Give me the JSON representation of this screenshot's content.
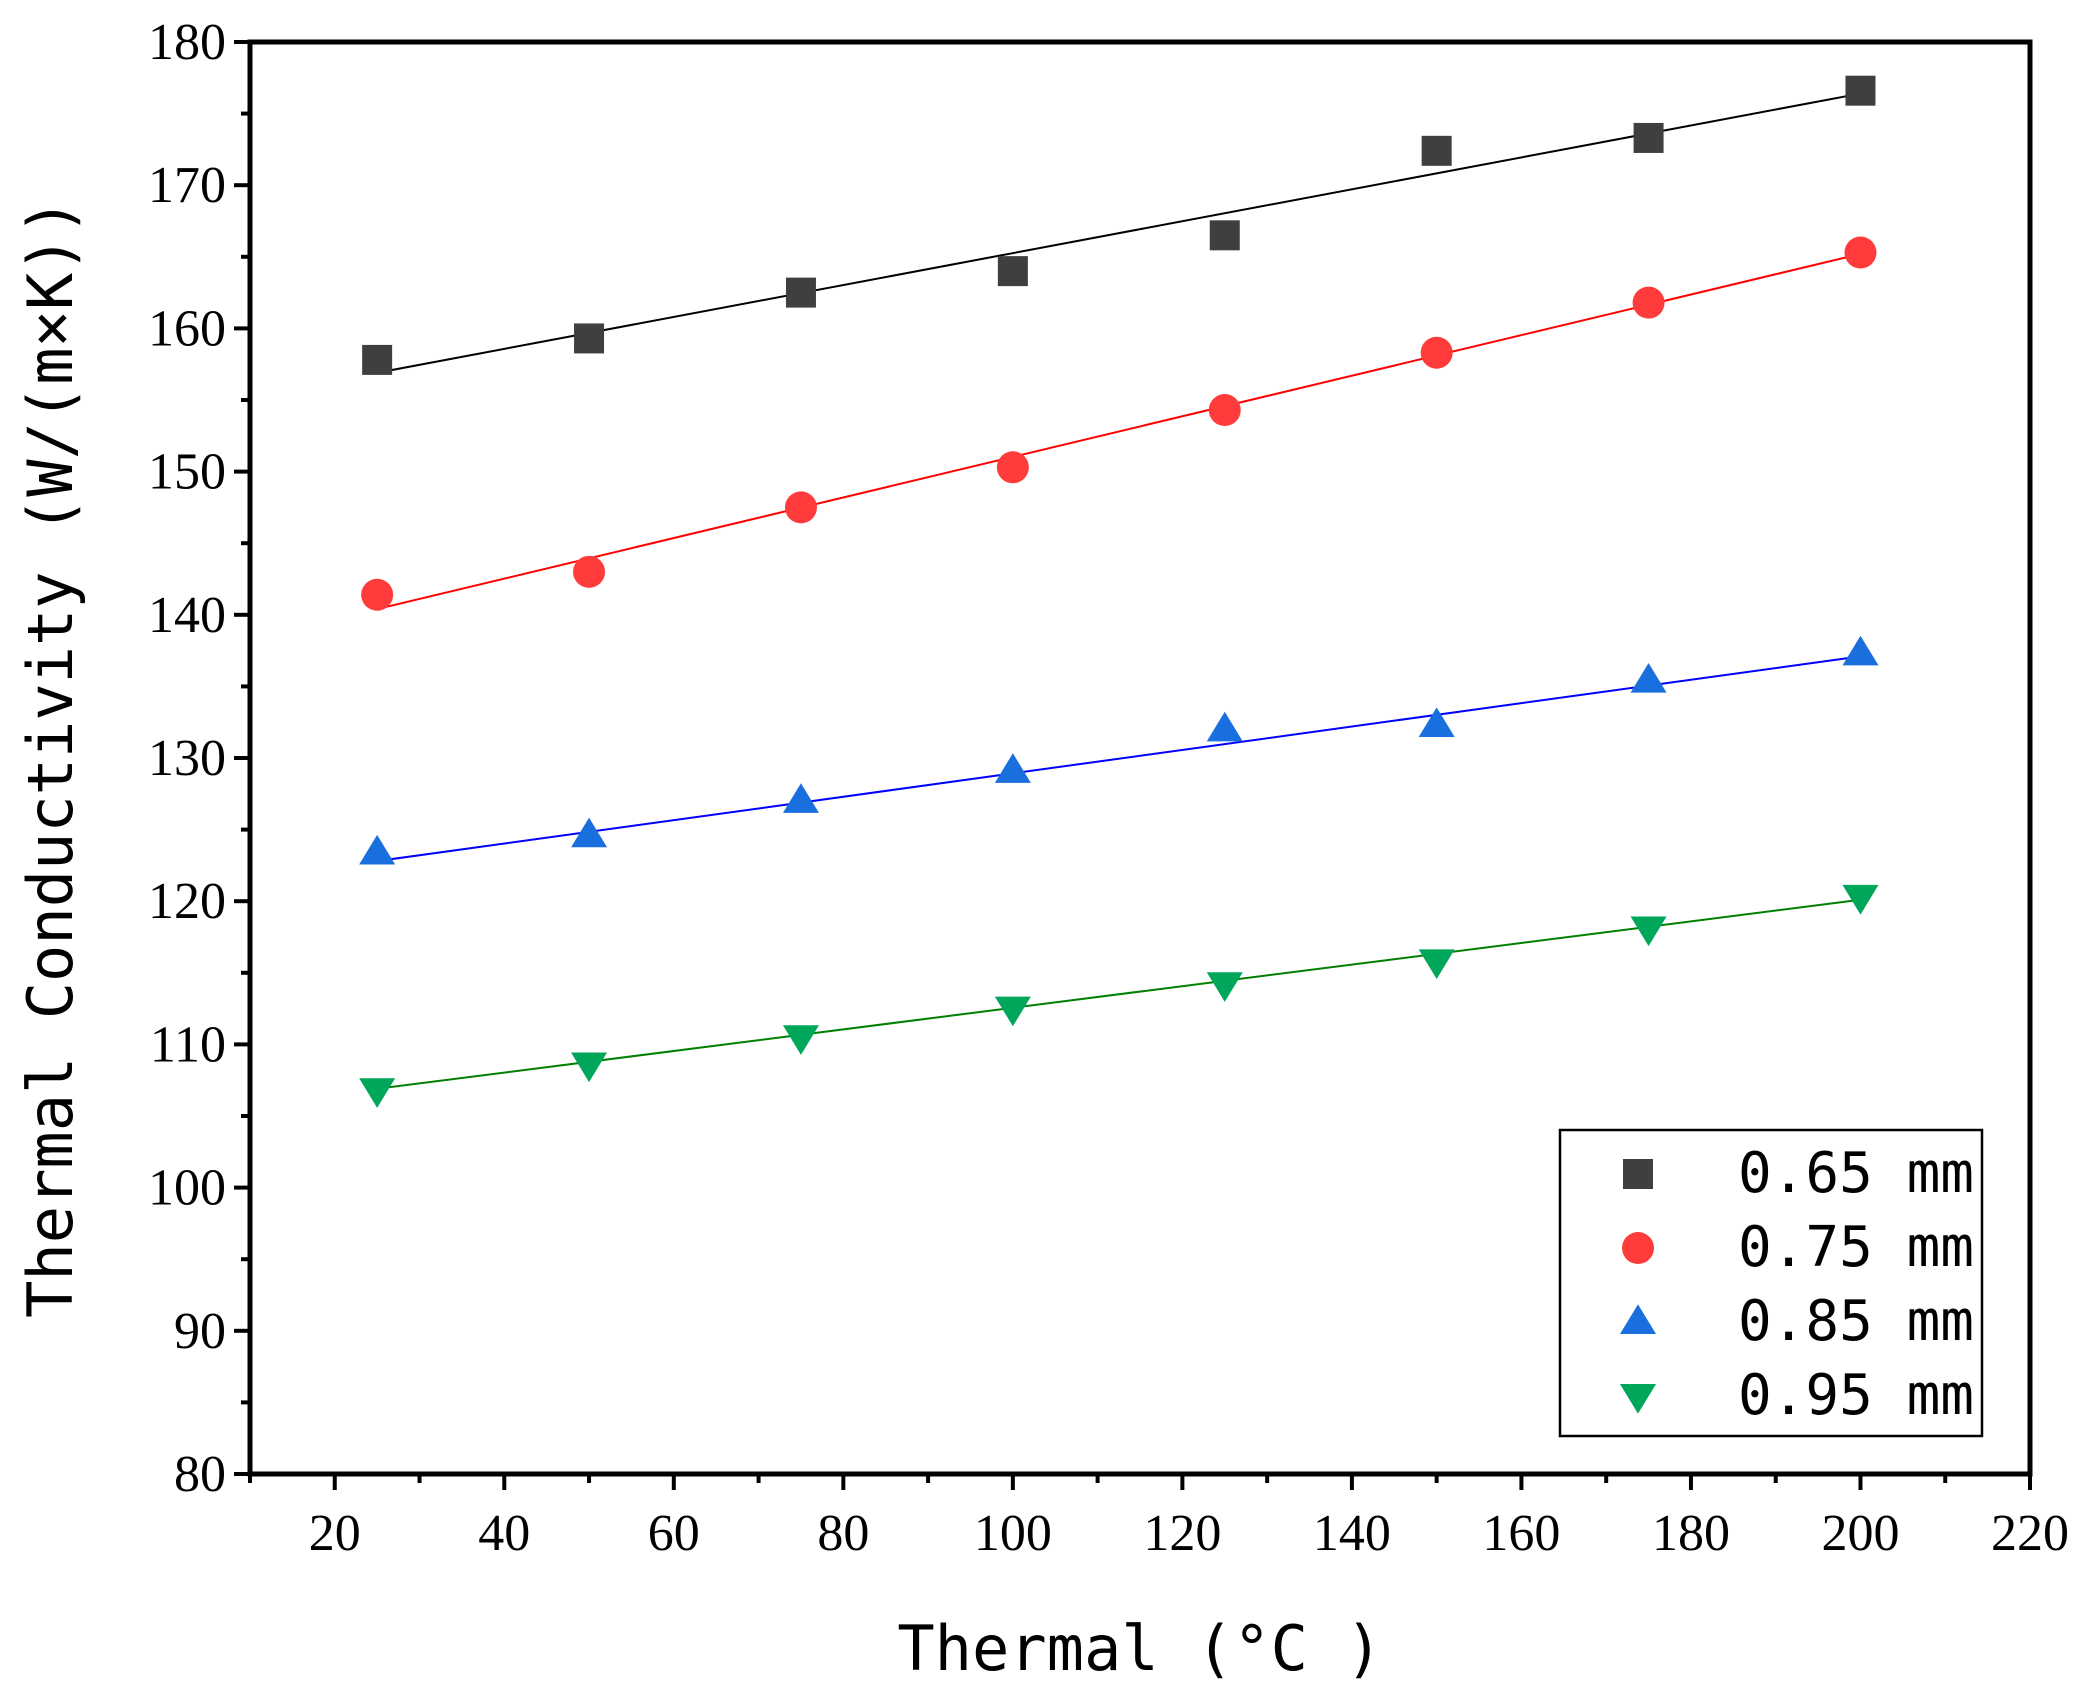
{
  "chart_data": {
    "type": "scatter",
    "title": "",
    "xlabel": "Thermal (°C )",
    "ylabel": "Thermal Conductivity (W/(m×K))",
    "xlim": [
      10,
      220
    ],
    "ylim": [
      80,
      180
    ],
    "xticks": [
      20,
      40,
      60,
      80,
      100,
      120,
      140,
      160,
      180,
      200,
      220
    ],
    "yticks": [
      80,
      90,
      100,
      110,
      120,
      130,
      140,
      150,
      160,
      170,
      180
    ],
    "grid": false,
    "legend_position": "bottom-right",
    "x": [
      25,
      50,
      75,
      100,
      125,
      150,
      175,
      200
    ],
    "series": [
      {
        "name": "0.65 mm",
        "marker": "square",
        "color": "#3f3f3f",
        "line_color": "#000000",
        "values": [
          157.8,
          159.3,
          162.5,
          164.0,
          166.5,
          172.4,
          173.3,
          176.6
        ],
        "fit": [
          156.9,
          176.4
        ]
      },
      {
        "name": "0.75 mm",
        "marker": "circle",
        "color": "#ff3b3b",
        "line_color": "#ff0000",
        "values": [
          141.4,
          143.0,
          147.5,
          150.3,
          154.3,
          158.3,
          161.8,
          165.3
        ],
        "fit": [
          140.4,
          165.2
        ]
      },
      {
        "name": "0.85 mm",
        "marker": "triangle-up",
        "color": "#1a6fdf",
        "line_color": "#0000ff",
        "values": [
          123.4,
          124.6,
          127.0,
          129.1,
          132.0,
          132.3,
          135.4,
          137.3
        ],
        "fit": [
          122.8,
          137.1
        ]
      },
      {
        "name": "0.95 mm",
        "marker": "triangle-down",
        "color": "#00a65a",
        "line_color": "#008000",
        "values": [
          106.8,
          108.6,
          110.5,
          112.5,
          114.2,
          115.8,
          118.1,
          120.3
        ],
        "fit": [
          106.9,
          120.1
        ]
      }
    ]
  }
}
